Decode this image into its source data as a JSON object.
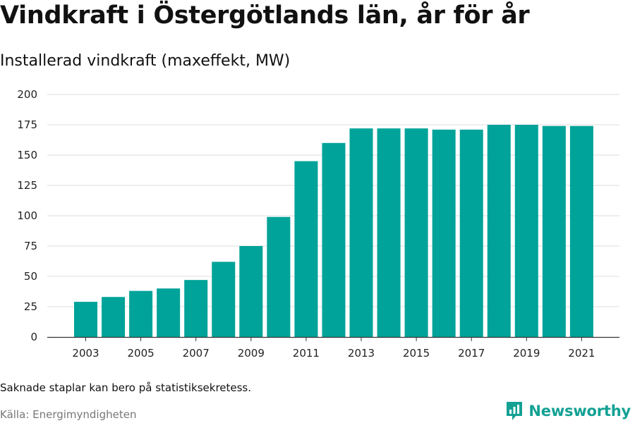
{
  "header": {
    "title": "Vindkraft i Östergötlands län, år för år",
    "subtitle": "Installerad vindkraft (maxeffekt, MW)"
  },
  "footer": {
    "note": "Saknade staplar kan bero på statistiksekretess.",
    "source": "Källa: Energimyndigheten",
    "brand": "Newsworthy"
  },
  "colors": {
    "bar": "#00a399",
    "grid": "#dddddd",
    "axis": "#333333",
    "brand": "#13a194"
  },
  "icons": {
    "brand_logo": "newsworthy-logo-icon"
  },
  "chart_data": {
    "type": "bar",
    "title": "Vindkraft i Östergötlands län, år för år",
    "subtitle": "Installerad vindkraft (maxeffekt, MW)",
    "xlabel": "",
    "ylabel": "",
    "categories": [
      2003,
      2004,
      2005,
      2006,
      2007,
      2008,
      2009,
      2010,
      2011,
      2012,
      2013,
      2014,
      2015,
      2016,
      2017,
      2018,
      2019,
      2020,
      2021
    ],
    "values": [
      29,
      33,
      38,
      40,
      47,
      62,
      75,
      99,
      145,
      160,
      172,
      172,
      172,
      171,
      171,
      175,
      175,
      174,
      174
    ],
    "x_tick_labels": [
      "2003",
      "2005",
      "2007",
      "2009",
      "2011",
      "2013",
      "2015",
      "2017",
      "2019",
      "2021"
    ],
    "y_ticks": [
      0,
      25,
      50,
      75,
      100,
      125,
      150,
      175,
      200
    ],
    "ylim": [
      0,
      200
    ],
    "grid": true,
    "legend": "none"
  }
}
